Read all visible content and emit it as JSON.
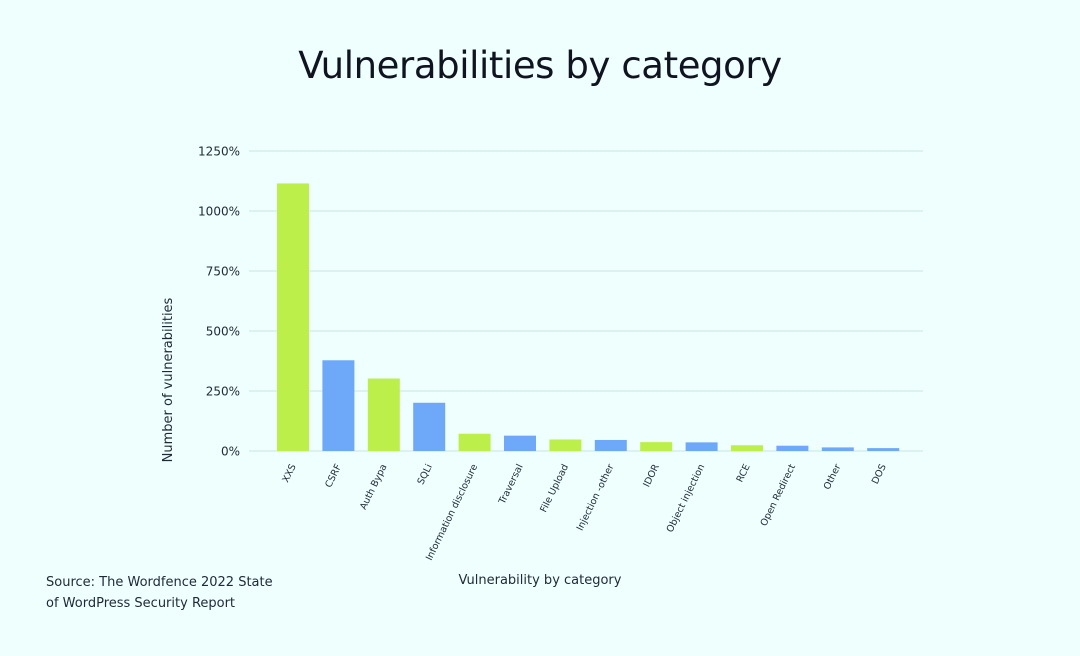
{
  "page": {
    "source_line_1": "Source: The Wordfence 2022 State",
    "source_line_2": "of WordPress Security Report"
  },
  "chart_data": {
    "type": "bar",
    "title": "Vulnerabilities by category",
    "xlabel": "Vulnerability by category",
    "ylabel": "Number of vulnerabilities",
    "ylim": [
      0,
      1250
    ],
    "yticks": [
      0,
      250,
      500,
      750,
      1000,
      1250
    ],
    "ytick_labels": [
      "0%",
      "250%",
      "500%",
      "750%",
      "1000%",
      "1250%"
    ],
    "grid": true,
    "categories": [
      "XXS",
      "CSRF",
      "Auth Bypa",
      "SQLi",
      "Information disclosure",
      "Traversal",
      "File Upload",
      "Injection -other",
      "IDOR",
      "Object injection",
      "RCE",
      "Open Redirect",
      "Other",
      "DOS"
    ],
    "values": [
      1115,
      378,
      302,
      201,
      72,
      64,
      48,
      46,
      37,
      36,
      24,
      22,
      15,
      12
    ],
    "bar_colors": [
      "#bdef4b",
      "#6ea8f8",
      "#bdef4b",
      "#6ea8f8",
      "#bdef4b",
      "#6ea8f8",
      "#bdef4b",
      "#6ea8f8",
      "#bdef4b",
      "#6ea8f8",
      "#bdef4b",
      "#6ea8f8",
      "#6ea8f8",
      "#6ea8f8"
    ],
    "gridline_color": "#c8e5e4"
  }
}
